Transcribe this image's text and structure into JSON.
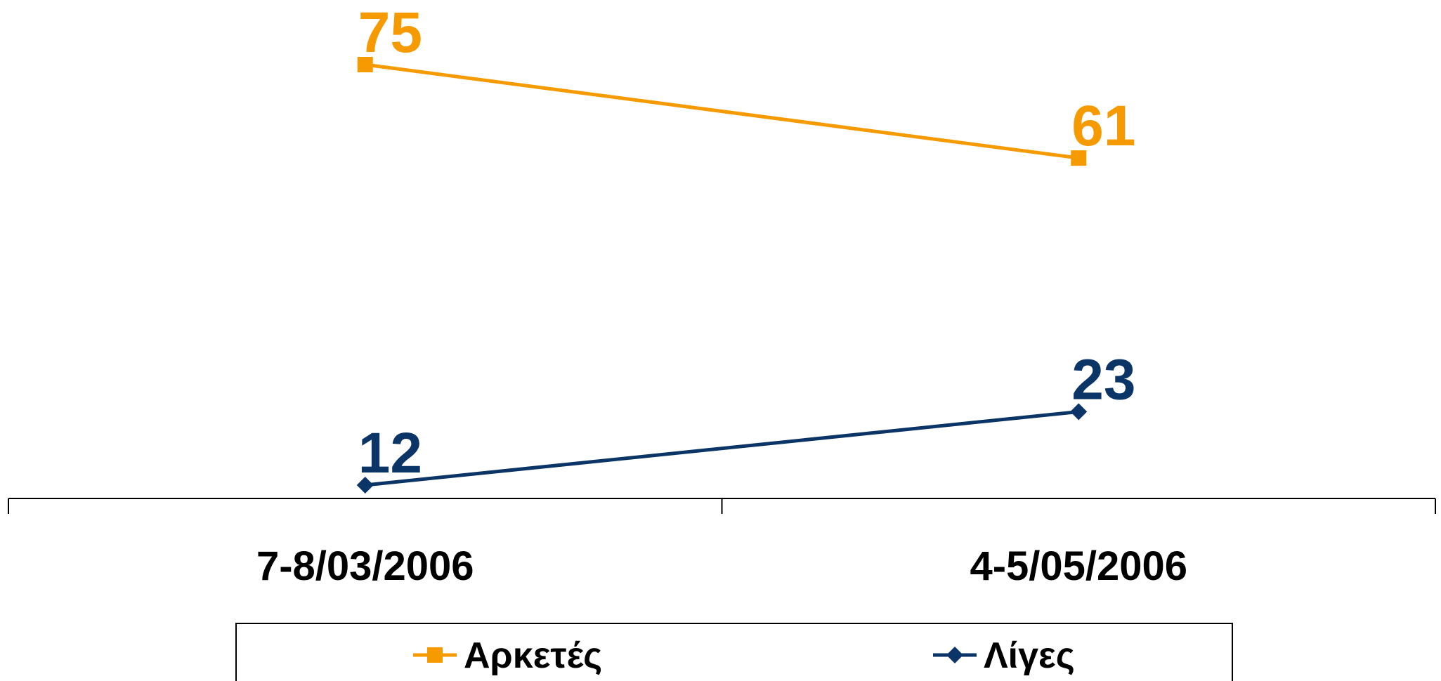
{
  "chart_data": {
    "type": "line",
    "categories": [
      "7-8/03/2006",
      "4-5/05/2006"
    ],
    "series": [
      {
        "name": "Αρκετές",
        "values": [
          75,
          61
        ],
        "color": "#F59A00",
        "marker": "square"
      },
      {
        "name": "Λίγες",
        "values": [
          12,
          23
        ],
        "color": "#0B3566",
        "marker": "diamond"
      }
    ],
    "title": "",
    "xlabel": "",
    "ylabel": "",
    "ylim": [
      10,
      80
    ],
    "grid": false,
    "data_labels": true,
    "legend": {
      "placement": "bottom"
    }
  }
}
